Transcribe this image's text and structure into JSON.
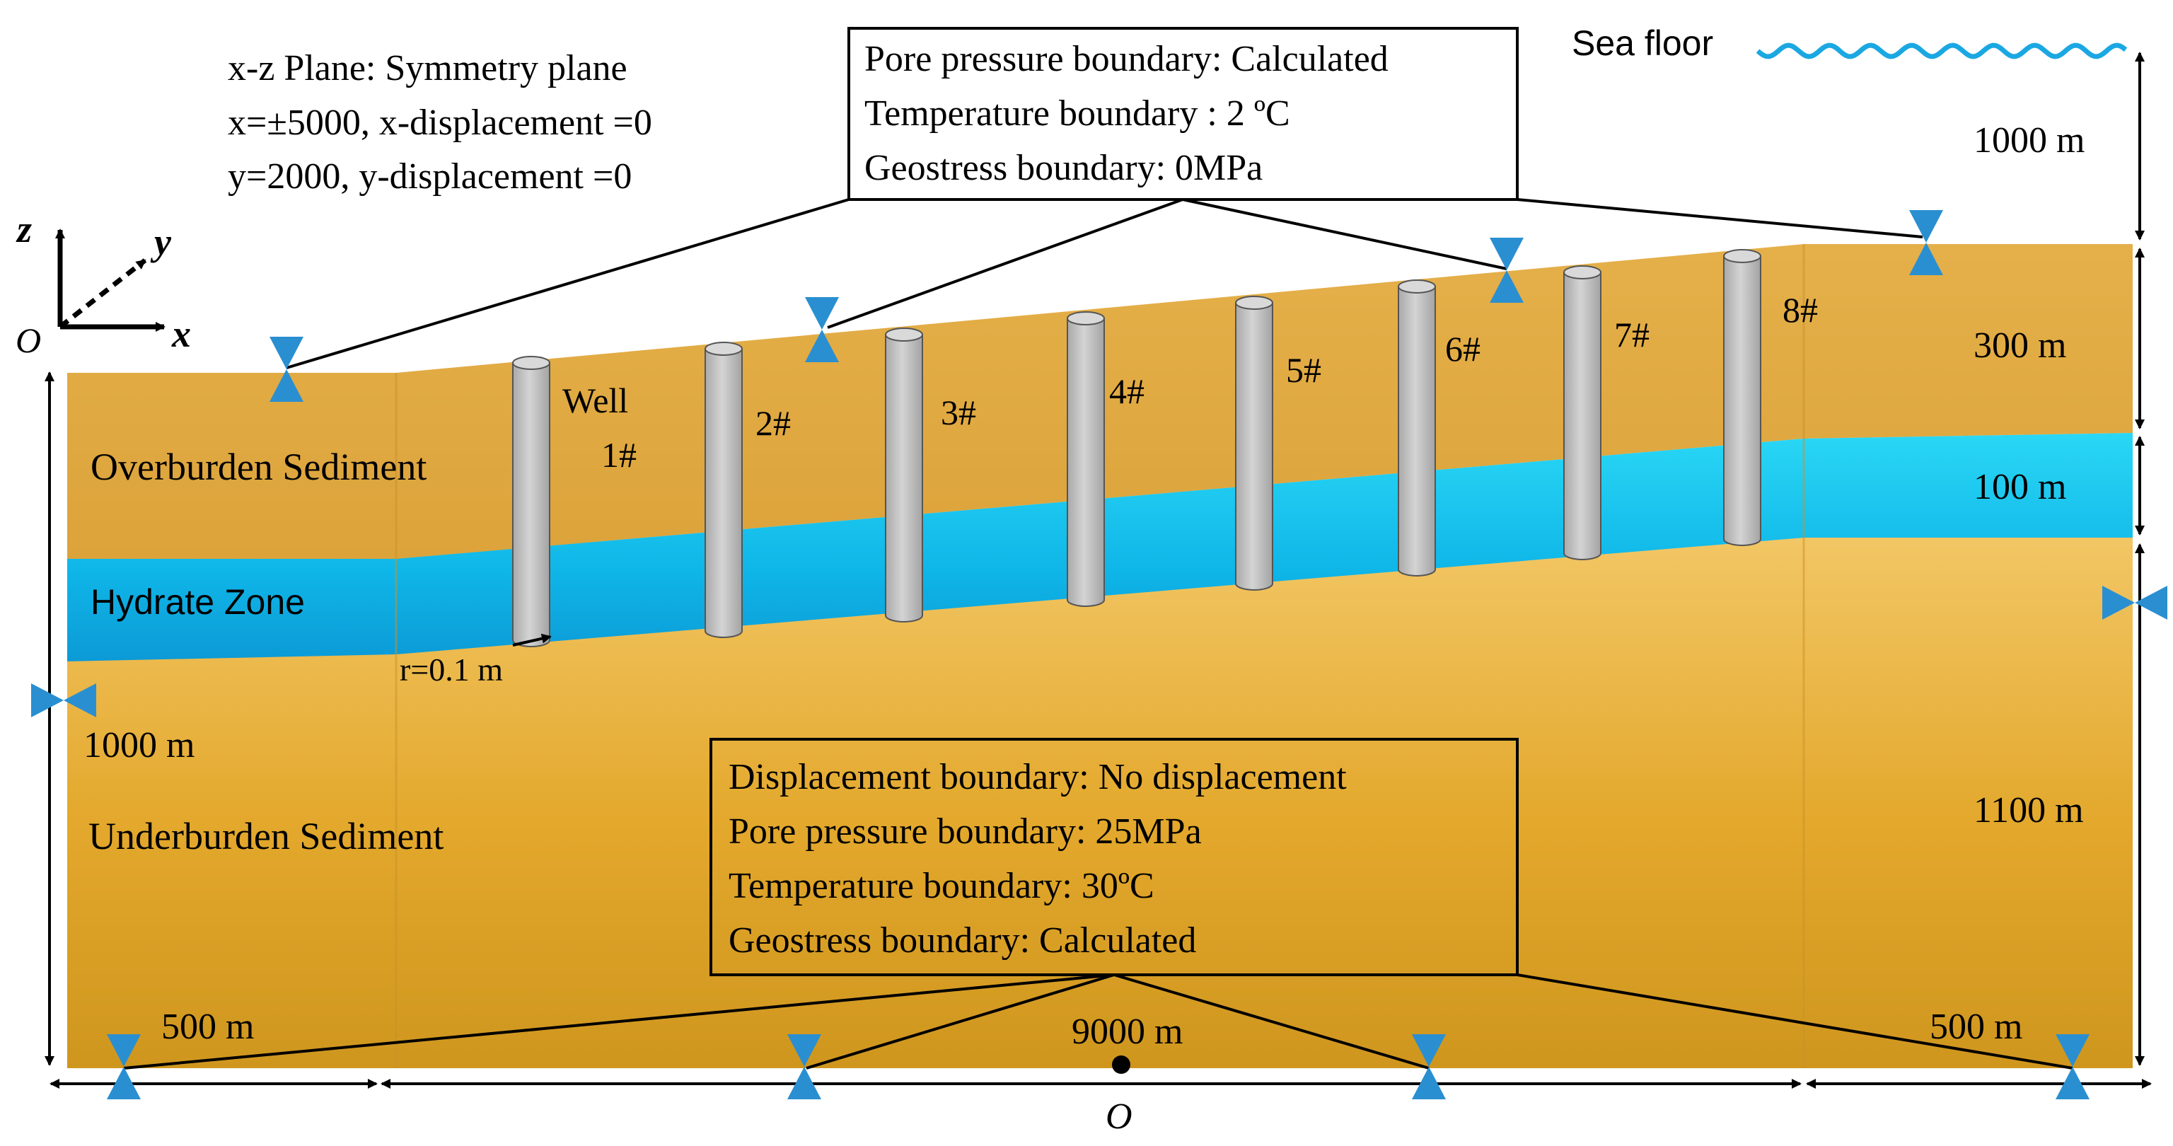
{
  "colors": {
    "sediment_light": "#eebb52",
    "sediment_dark": "#d39a1f",
    "hydrate_light": "#22d0f2",
    "hydrate_dark": "#0f9ed9",
    "well_fill": "#c3c3c3",
    "support_blue": "#2a8fd1",
    "wave_blue": "#1ba8e2"
  },
  "coordinate_system": {
    "z_label": "z",
    "y_label": "y",
    "x_label": "x",
    "origin_label": "O"
  },
  "symmetry_note": {
    "line1": "x-z Plane: Symmetry plane",
    "line2": "x=±5000, x-displacement =0",
    "line3": "y=2000, y-displacement =0"
  },
  "top_boundary": {
    "line1": "Pore pressure boundary:  Calculated",
    "line2": "Temperature boundary :   2 ºC",
    "line3": "Geostress boundary:  0MPa"
  },
  "bottom_boundary": {
    "line1": "Displacement boundary:  No displacement",
    "line2": "Pore pressure boundary:  25MPa",
    "line3": "Temperature boundary:   30ºC",
    "line4": "Geostress boundary:  Calculated"
  },
  "sea_floor_label": "Sea floor",
  "layers": {
    "overburden": "Overburden Sediment",
    "hydrate": "Hydrate Zone",
    "underburden": "Underburden Sediment"
  },
  "dimensions": {
    "water_depth": "1000 m",
    "overburden_thickness": "300 m",
    "hydrate_thickness": "100 m",
    "underburden_thickness": "1100 m",
    "left_total": "1000 m",
    "left_width": "500 m",
    "middle_width": "9000 m",
    "right_width": "500 m",
    "bottom_origin": "O"
  },
  "wells": {
    "well_word": "Well",
    "radius_label": "r=0.1 m",
    "labels": [
      "1#",
      "2#",
      "3#",
      "4#",
      "5#",
      "6#",
      "7#",
      "8#"
    ]
  }
}
